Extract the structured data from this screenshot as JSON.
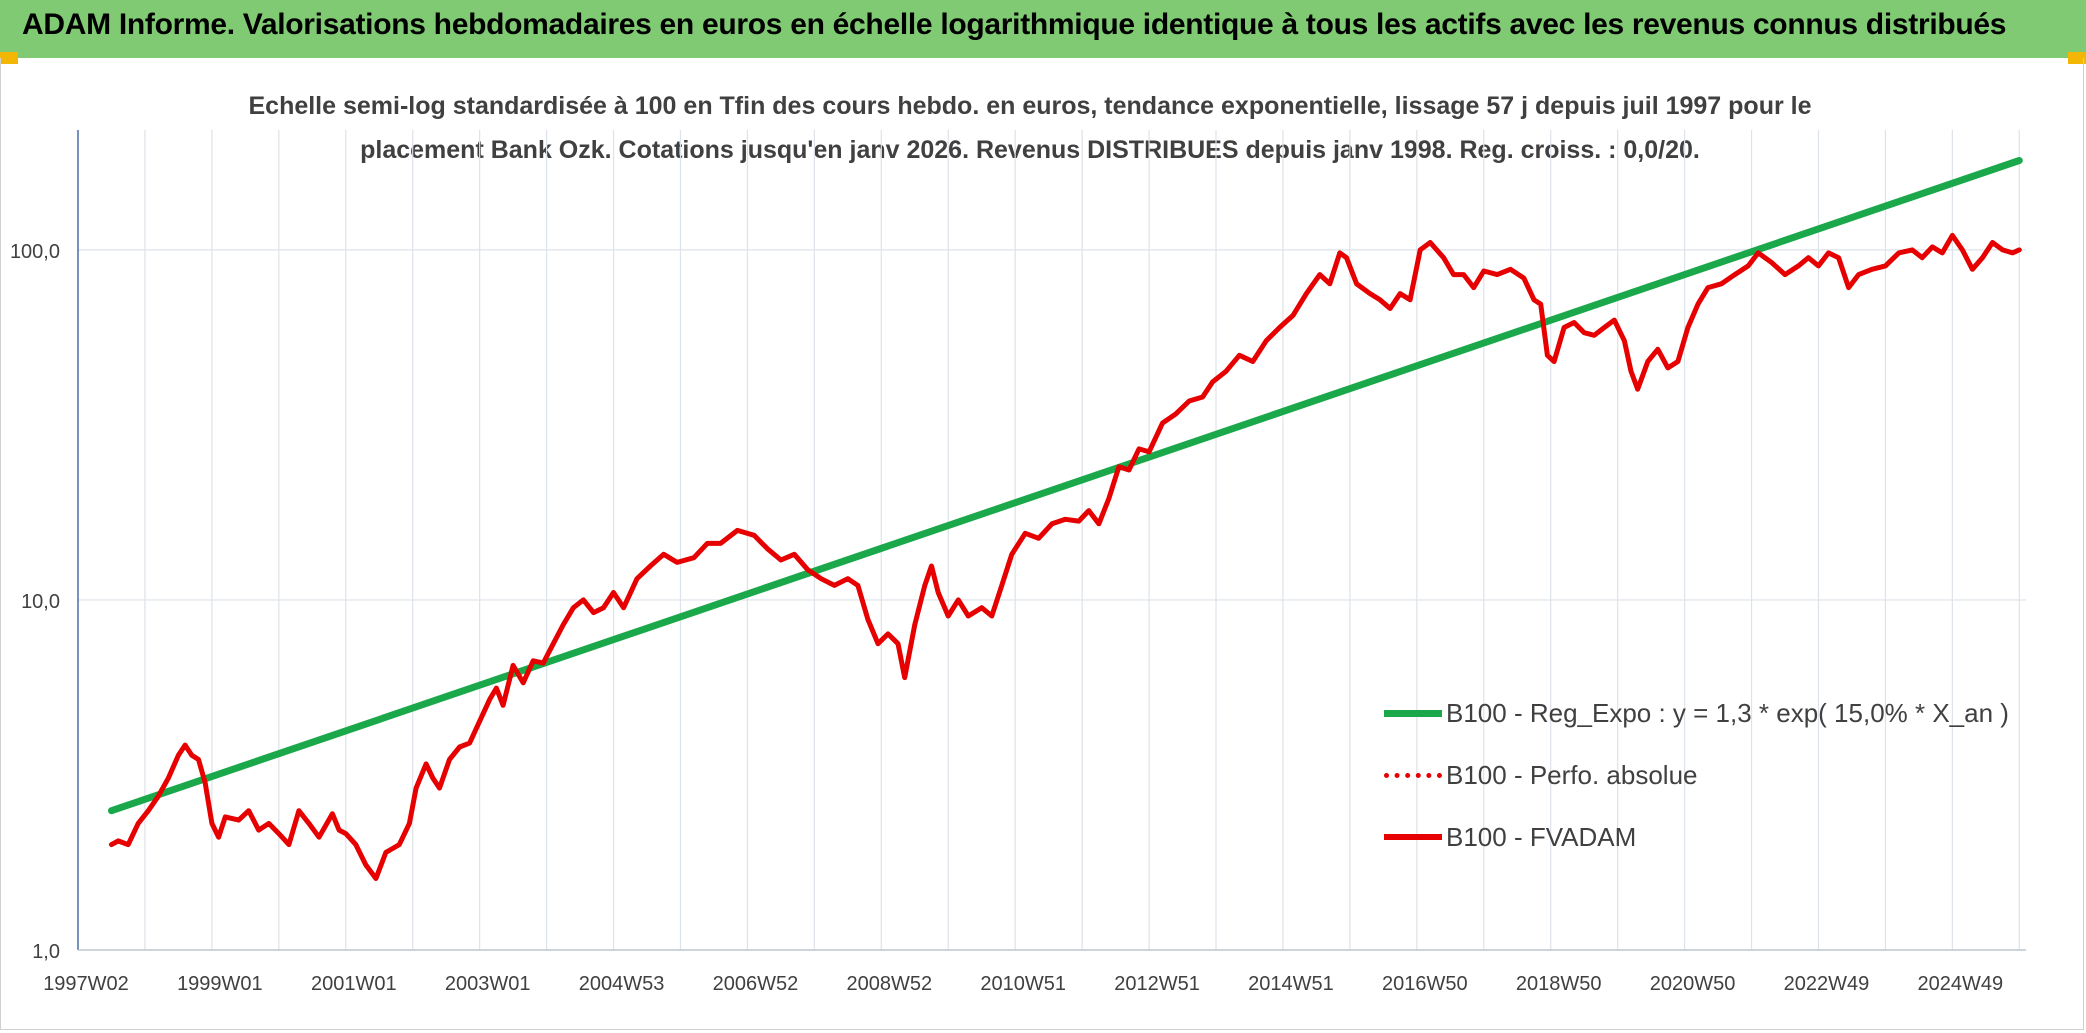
{
  "banner": {
    "title": "ADAM Informe. Valorisations hebdomadaires en euros en échelle logarithmique identique à tous les actifs avec les revenus connus distribués"
  },
  "chart_data": {
    "type": "line",
    "subtitle_line1": "Echelle semi-log standardisée à 100 en Tfin des cours hebdo. en euros, tendance exponentielle, lissage 57 j depuis juil 1997 pour le",
    "subtitle_line2": "placement Bank Ozk. Cotations jusqu'en janv 2026. Revenus DISTRIBUES depuis janv 1998. Reg. croiss. : 0,0/20.",
    "y_scale": "log",
    "ylim": [
      1,
      220
    ],
    "y_ticks": [
      {
        "value": 1,
        "label": "1,0"
      },
      {
        "value": 10,
        "label": "10,0"
      },
      {
        "value": 100,
        "label": "100,0"
      }
    ],
    "xlim": [
      1997.0,
      2026.1
    ],
    "x_ticks": [
      {
        "x": 1997.0,
        "label": "1997W02"
      },
      {
        "x": 1999.0,
        "label": "1999W01"
      },
      {
        "x": 2001.0,
        "label": "2001W01"
      },
      {
        "x": 2003.0,
        "label": "2003W01"
      },
      {
        "x": 2005.0,
        "label": "2004W53"
      },
      {
        "x": 2007.0,
        "label": "2006W52"
      },
      {
        "x": 2009.0,
        "label": "2008W52"
      },
      {
        "x": 2011.0,
        "label": "2010W51"
      },
      {
        "x": 2013.0,
        "label": "2012W51"
      },
      {
        "x": 2015.0,
        "label": "2014W51"
      },
      {
        "x": 2017.0,
        "label": "2016W50"
      },
      {
        "x": 2019.0,
        "label": "2018W50"
      },
      {
        "x": 2021.0,
        "label": "2020W50"
      },
      {
        "x": 2023.0,
        "label": "2022W49"
      },
      {
        "x": 2025.0,
        "label": "2024W49"
      }
    ],
    "grid": "vertical and horizontal",
    "legend_position": "bottom-right",
    "series": [
      {
        "name": "B100 - Reg_Expo : y = 1,3 * exp( 15,0% *  X_an )",
        "color": "#1aa84a",
        "style": "solid",
        "points": [
          [
            1997.5,
            2.5
          ],
          [
            2026.0,
            180
          ]
        ]
      },
      {
        "name": "B100 - Perfo. absolue",
        "color": "#e60000",
        "style": "dotted",
        "points": []
      },
      {
        "name": "B100 - FVADAM",
        "color": "#e60000",
        "style": "solid",
        "points": [
          [
            1997.5,
            2.0
          ],
          [
            1997.6,
            2.05
          ],
          [
            1997.75,
            2.0
          ],
          [
            1997.9,
            2.3
          ],
          [
            1998.05,
            2.5
          ],
          [
            1998.2,
            2.75
          ],
          [
            1998.35,
            3.1
          ],
          [
            1998.5,
            3.6
          ],
          [
            1998.6,
            3.85
          ],
          [
            1998.7,
            3.6
          ],
          [
            1998.8,
            3.5
          ],
          [
            1998.9,
            3.0
          ],
          [
            1999.0,
            2.3
          ],
          [
            1999.1,
            2.1
          ],
          [
            1999.2,
            2.4
          ],
          [
            1999.4,
            2.35
          ],
          [
            1999.55,
            2.5
          ],
          [
            1999.7,
            2.2
          ],
          [
            1999.85,
            2.3
          ],
          [
            2000.0,
            2.15
          ],
          [
            2000.15,
            2.0
          ],
          [
            2000.3,
            2.5
          ],
          [
            2000.45,
            2.3
          ],
          [
            2000.6,
            2.1
          ],
          [
            2000.8,
            2.45
          ],
          [
            2000.9,
            2.2
          ],
          [
            2001.0,
            2.15
          ],
          [
            2001.15,
            2.0
          ],
          [
            2001.3,
            1.75
          ],
          [
            2001.45,
            1.6
          ],
          [
            2001.6,
            1.9
          ],
          [
            2001.8,
            2.0
          ],
          [
            2001.95,
            2.3
          ],
          [
            2002.05,
            2.9
          ],
          [
            2002.2,
            3.4
          ],
          [
            2002.3,
            3.1
          ],
          [
            2002.4,
            2.9
          ],
          [
            2002.55,
            3.5
          ],
          [
            2002.7,
            3.8
          ],
          [
            2002.85,
            3.9
          ],
          [
            2003.0,
            4.5
          ],
          [
            2003.15,
            5.2
          ],
          [
            2003.25,
            5.6
          ],
          [
            2003.35,
            5.0
          ],
          [
            2003.5,
            6.5
          ],
          [
            2003.65,
            5.8
          ],
          [
            2003.8,
            6.7
          ],
          [
            2003.95,
            6.6
          ],
          [
            2004.1,
            7.5
          ],
          [
            2004.25,
            8.5
          ],
          [
            2004.4,
            9.5
          ],
          [
            2004.55,
            10.0
          ],
          [
            2004.7,
            9.2
          ],
          [
            2004.85,
            9.5
          ],
          [
            2005.0,
            10.5
          ],
          [
            2005.15,
            9.5
          ],
          [
            2005.35,
            11.5
          ],
          [
            2005.55,
            12.5
          ],
          [
            2005.75,
            13.5
          ],
          [
            2005.95,
            12.8
          ],
          [
            2006.2,
            13.2
          ],
          [
            2006.4,
            14.5
          ],
          [
            2006.6,
            14.5
          ],
          [
            2006.85,
            15.8
          ],
          [
            2007.1,
            15.3
          ],
          [
            2007.3,
            14.0
          ],
          [
            2007.5,
            13.0
          ],
          [
            2007.7,
            13.5
          ],
          [
            2007.9,
            12.2
          ],
          [
            2008.1,
            11.5
          ],
          [
            2008.3,
            11.0
          ],
          [
            2008.5,
            11.5
          ],
          [
            2008.65,
            11.0
          ],
          [
            2008.8,
            8.8
          ],
          [
            2008.95,
            7.5
          ],
          [
            2009.1,
            8.0
          ],
          [
            2009.25,
            7.5
          ],
          [
            2009.35,
            6.0
          ],
          [
            2009.5,
            8.5
          ],
          [
            2009.65,
            11.0
          ],
          [
            2009.75,
            12.5
          ],
          [
            2009.85,
            10.5
          ],
          [
            2010.0,
            9.0
          ],
          [
            2010.15,
            10.0
          ],
          [
            2010.3,
            9.0
          ],
          [
            2010.5,
            9.5
          ],
          [
            2010.65,
            9.0
          ],
          [
            2010.8,
            11.0
          ],
          [
            2010.95,
            13.5
          ],
          [
            2011.15,
            15.5
          ],
          [
            2011.35,
            15.0
          ],
          [
            2011.55,
            16.5
          ],
          [
            2011.75,
            17.0
          ],
          [
            2011.95,
            16.8
          ],
          [
            2012.1,
            18.0
          ],
          [
            2012.25,
            16.5
          ],
          [
            2012.4,
            19.5
          ],
          [
            2012.55,
            24.0
          ],
          [
            2012.7,
            23.5
          ],
          [
            2012.85,
            27.0
          ],
          [
            2013.0,
            26.5
          ],
          [
            2013.2,
            32.0
          ],
          [
            2013.4,
            34.0
          ],
          [
            2013.6,
            37.0
          ],
          [
            2013.8,
            38.0
          ],
          [
            2013.95,
            42.0
          ],
          [
            2014.15,
            45.0
          ],
          [
            2014.35,
            50.0
          ],
          [
            2014.55,
            48.0
          ],
          [
            2014.75,
            55.0
          ],
          [
            2014.95,
            60.0
          ],
          [
            2015.15,
            65.0
          ],
          [
            2015.35,
            75.0
          ],
          [
            2015.55,
            85.0
          ],
          [
            2015.7,
            80.0
          ],
          [
            2015.85,
            98.0
          ],
          [
            2015.95,
            95.0
          ],
          [
            2016.1,
            80.0
          ],
          [
            2016.3,
            75.0
          ],
          [
            2016.45,
            72.0
          ],
          [
            2016.6,
            68.0
          ],
          [
            2016.75,
            75.0
          ],
          [
            2016.9,
            72.0
          ],
          [
            2017.05,
            100.0
          ],
          [
            2017.2,
            105.0
          ],
          [
            2017.4,
            95.0
          ],
          [
            2017.55,
            85.0
          ],
          [
            2017.7,
            85.0
          ],
          [
            2017.85,
            78.0
          ],
          [
            2018.0,
            87.0
          ],
          [
            2018.2,
            85.0
          ],
          [
            2018.4,
            88.0
          ],
          [
            2018.6,
            83.0
          ],
          [
            2018.75,
            72.0
          ],
          [
            2018.85,
            70.0
          ],
          [
            2018.95,
            50.0
          ],
          [
            2019.05,
            48.0
          ],
          [
            2019.2,
            60.0
          ],
          [
            2019.35,
            62.0
          ],
          [
            2019.5,
            58.0
          ],
          [
            2019.65,
            57.0
          ],
          [
            2019.8,
            60.0
          ],
          [
            2019.95,
            63.0
          ],
          [
            2020.1,
            55.0
          ],
          [
            2020.2,
            45.0
          ],
          [
            2020.3,
            40.0
          ],
          [
            2020.45,
            48.0
          ],
          [
            2020.6,
            52.0
          ],
          [
            2020.75,
            46.0
          ],
          [
            2020.9,
            48.0
          ],
          [
            2021.05,
            60.0
          ],
          [
            2021.2,
            70.0
          ],
          [
            2021.35,
            78.0
          ],
          [
            2021.55,
            80.0
          ],
          [
            2021.75,
            85.0
          ],
          [
            2021.95,
            90.0
          ],
          [
            2022.1,
            98.0
          ],
          [
            2022.3,
            92.0
          ],
          [
            2022.5,
            85.0
          ],
          [
            2022.7,
            90.0
          ],
          [
            2022.85,
            95.0
          ],
          [
            2023.0,
            90.0
          ],
          [
            2023.15,
            98.0
          ],
          [
            2023.3,
            95.0
          ],
          [
            2023.45,
            78.0
          ],
          [
            2023.6,
            85.0
          ],
          [
            2023.8,
            88.0
          ],
          [
            2024.0,
            90.0
          ],
          [
            2024.2,
            98.0
          ],
          [
            2024.4,
            100.0
          ],
          [
            2024.55,
            95.0
          ],
          [
            2024.7,
            102.0
          ],
          [
            2024.85,
            98.0
          ],
          [
            2025.0,
            110.0
          ],
          [
            2025.15,
            100.0
          ],
          [
            2025.3,
            88.0
          ],
          [
            2025.45,
            95.0
          ],
          [
            2025.6,
            105.0
          ],
          [
            2025.75,
            100.0
          ],
          [
            2025.9,
            98.0
          ],
          [
            2026.0,
            100.0
          ]
        ]
      }
    ]
  }
}
